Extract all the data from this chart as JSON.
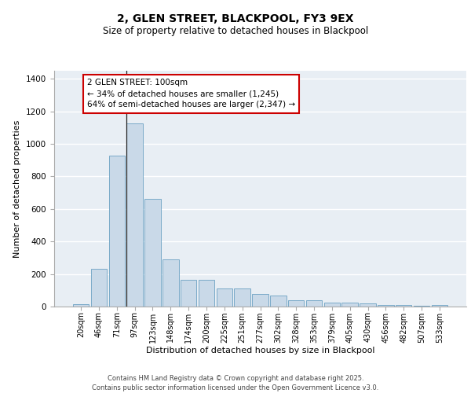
{
  "title": "2, GLEN STREET, BLACKPOOL, FY3 9EX",
  "subtitle": "Size of property relative to detached houses in Blackpool",
  "xlabel": "Distribution of detached houses by size in Blackpool",
  "ylabel": "Number of detached properties",
  "categories": [
    "20sqm",
    "46sqm",
    "71sqm",
    "97sqm",
    "123sqm",
    "148sqm",
    "174sqm",
    "200sqm",
    "225sqm",
    "251sqm",
    "277sqm",
    "302sqm",
    "328sqm",
    "353sqm",
    "379sqm",
    "405sqm",
    "430sqm",
    "456sqm",
    "482sqm",
    "507sqm",
    "533sqm"
  ],
  "values": [
    15,
    230,
    930,
    1125,
    660,
    290,
    165,
    162,
    110,
    110,
    75,
    70,
    40,
    38,
    25,
    22,
    20,
    12,
    8,
    5,
    8
  ],
  "bar_color": "#c9d9e8",
  "bar_edge_color": "#7aaac8",
  "background_color": "#e8eef4",
  "grid_color": "#ffffff",
  "annotation_text": "2 GLEN STREET: 100sqm\n← 34% of detached houses are smaller (1,245)\n64% of semi-detached houses are larger (2,347) →",
  "annotation_box_color": "#ffffff",
  "annotation_box_edge_color": "#cc0000",
  "vline_x_index": 3,
  "footer": "Contains HM Land Registry data © Crown copyright and database right 2025.\nContains public sector information licensed under the Open Government Licence v3.0.",
  "ylim": [
    0,
    1450
  ],
  "title_fontsize": 10,
  "subtitle_fontsize": 8.5,
  "xlabel_fontsize": 8,
  "ylabel_fontsize": 8,
  "tick_fontsize": 7,
  "footer_fontsize": 6,
  "annotation_fontsize": 7.5
}
